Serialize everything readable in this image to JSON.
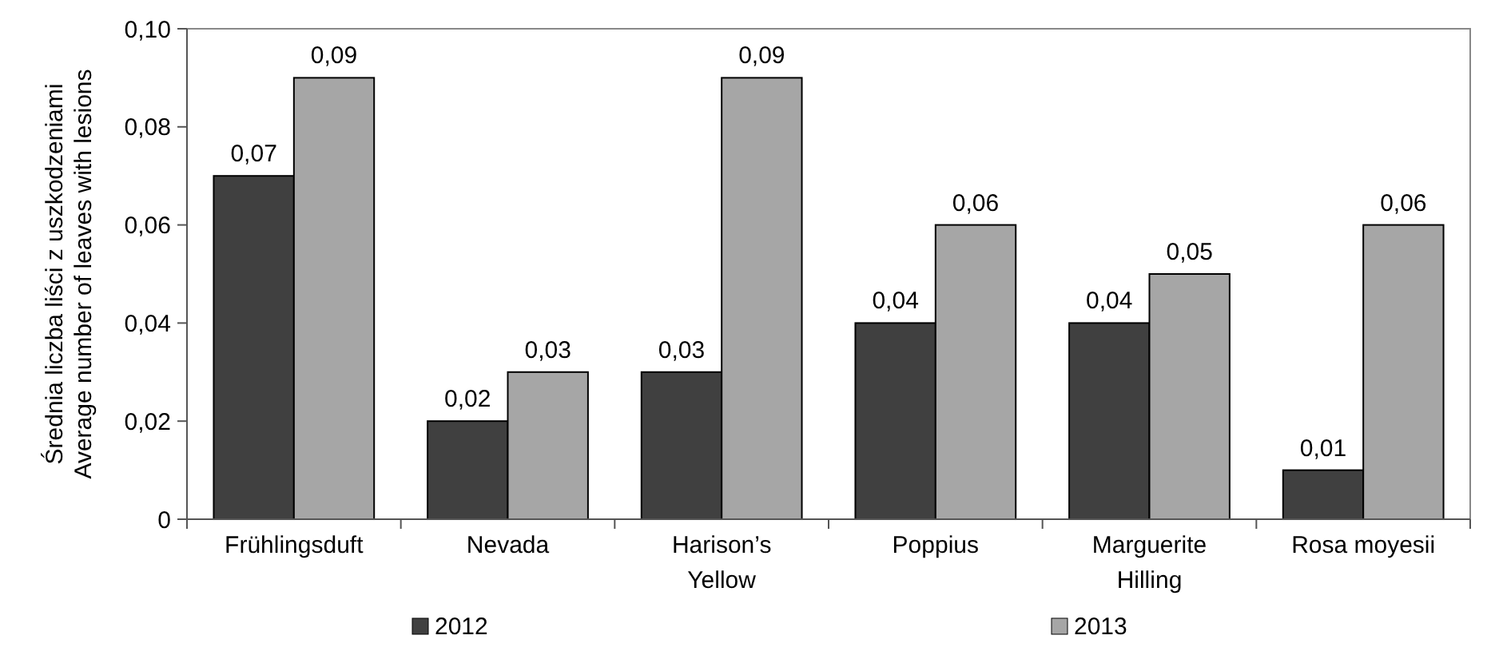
{
  "chart_data": {
    "type": "bar",
    "ylabel": "Średnia liczba  liści z uszkodzeniami\nAverage number of leaves with lesions",
    "categories": [
      "Frühlingsduft",
      "Nevada",
      "Harison’s Yellow",
      "Poppius",
      "Marguerite Hilling",
      "Rosa moyesii"
    ],
    "series": [
      {
        "name": "2012",
        "color": "#404040",
        "values": [
          0.07,
          0.02,
          0.03,
          0.04,
          0.04,
          0.01
        ],
        "value_labels": [
          "0,07",
          "0,02",
          "0,03",
          "0,04",
          "0,04",
          "0,01"
        ]
      },
      {
        "name": "2013",
        "color": "#a6a6a6",
        "values": [
          0.09,
          0.03,
          0.09,
          0.06,
          0.05,
          0.06
        ],
        "value_labels": [
          "0,09",
          "0,03",
          "0,09",
          "0,06",
          "0,05",
          "0,06"
        ]
      }
    ],
    "ylim": [
      0,
      0.1
    ],
    "yticks": [
      0,
      {
        "value": 0.02,
        "label": "0,02"
      },
      {
        "value": 0.04,
        "label": "0,04"
      },
      {
        "value": 0.06,
        "label": "0,06"
      },
      {
        "value": 0.08,
        "label": "0,08"
      },
      {
        "value": 0.1,
        "label": "0,10"
      }
    ],
    "grid": false,
    "legend": "bottom"
  }
}
